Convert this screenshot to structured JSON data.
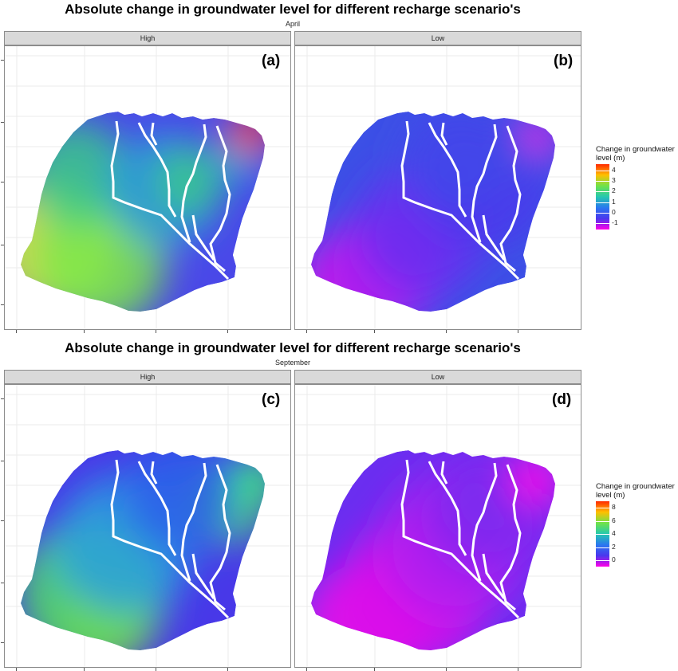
{
  "sections": [
    {
      "title": "Absolute change in groundwater level for different recharge scenario's",
      "subtitle": "April",
      "panels": [
        {
          "strip": "High",
          "letter": "(a)",
          "fill_colors": [
            "#d6f03b",
            "#7de84a",
            "#3ac98a",
            "#2a9fd8",
            "#2a72e8",
            "#4a48e8"
          ],
          "hotspot": "#ff2a00"
        },
        {
          "strip": "Low",
          "letter": "(b)",
          "fill_colors": [
            "#e011e8",
            "#a620f0",
            "#6a2ef0",
            "#4a38ec",
            "#4246ea",
            "#3c50e6"
          ],
          "hotspot": "#f010e8"
        }
      ],
      "legend": {
        "title": "Change in groundwater level (m)",
        "ticks": [
          "4",
          "3",
          "2",
          "1",
          "0",
          "-1"
        ],
        "colors": [
          "#ff2a00",
          "#ffc000",
          "#6fe34a",
          "#25c8b0",
          "#2a78f0",
          "#4a36ee",
          "#ff00e8"
        ]
      }
    },
    {
      "title": "Absolute change in groundwater level for different recharge scenario's",
      "subtitle": "September",
      "panels": [
        {
          "strip": "High",
          "letter": "(c)",
          "fill_colors": [
            "#ff4a00",
            "#ffb300",
            "#4fe062",
            "#2a9fe0",
            "#2a62ea",
            "#4838e8"
          ],
          "hotspot": "#3de87c"
        },
        {
          "strip": "Low",
          "letter": "(d)",
          "fill_colors": [
            "#f00ae8",
            "#d812ea",
            "#b01cf0",
            "#8a24f0",
            "#7a2af0",
            "#6a2ef0"
          ],
          "hotspot": "#ff10ea"
        }
      ],
      "legend": {
        "title": "Change in groundwater level (m)",
        "ticks": [
          "8",
          "6",
          "4",
          "2",
          "0"
        ],
        "colors": [
          "#ff2a00",
          "#ffc000",
          "#6fe34a",
          "#25c8b0",
          "#2a78f0",
          "#4a36ee",
          "#ff00e8"
        ]
      }
    }
  ]
}
